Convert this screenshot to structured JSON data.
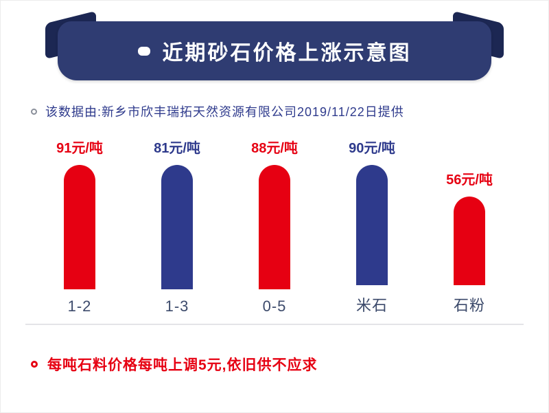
{
  "header": {
    "title": "近期砂石价格上涨示意图"
  },
  "subtitle": {
    "text": "该数据由:新乡市欣丰瑞拓天然资源有限公司2019/11/22日提供"
  },
  "chart_data": {
    "type": "bar",
    "title": "近期砂石价格上涨示意图",
    "categories": [
      "1-2",
      "1-3",
      "0-5",
      "米石",
      "石粉"
    ],
    "values": [
      91,
      81,
      88,
      90,
      56
    ],
    "value_labels": [
      "91元/吨",
      "81元/吨",
      "88元/吨",
      "90元/吨",
      "56元/吨"
    ],
    "unit": "元/吨",
    "bar_colors": [
      "#e60012",
      "#2e3a8c",
      "#e60012",
      "#2e3a8c",
      "#e60012"
    ],
    "xlabel": "",
    "ylabel": "",
    "ylim": [
      0,
      100
    ],
    "grid": false,
    "legend": false
  },
  "footer": {
    "note": "每吨石料价格每吨上调5元,依旧供不应求"
  },
  "colors": {
    "red": "#e60012",
    "navy_bar": "#2e3a8c",
    "banner": "#2f3c72",
    "banner_fold": "#1c2753",
    "subtitle_text": "#2e3a8c",
    "category_text": "#3c4a6b",
    "divider": "#e4e4e8"
  }
}
